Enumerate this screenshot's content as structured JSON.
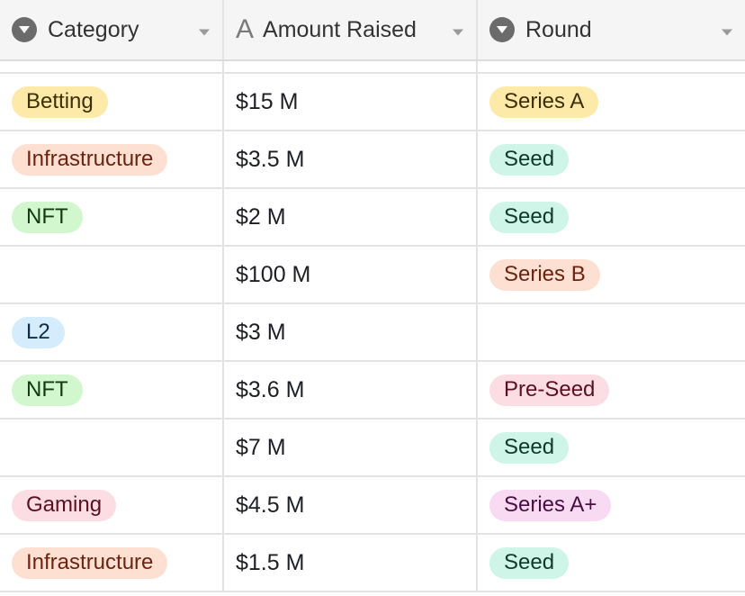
{
  "columns": [
    {
      "label": "Category",
      "icon": "single-select-icon"
    },
    {
      "label": "Amount Raised",
      "icon": "text-field-icon"
    },
    {
      "label": "Round",
      "icon": "single-select-icon"
    }
  ],
  "colors": {
    "yellow": {
      "bg": "#fde9a8",
      "fg": "#3d2f05"
    },
    "peach": {
      "bg": "#fde0d2",
      "fg": "#6a2410"
    },
    "green": {
      "bg": "#d2f7cf",
      "fg": "#123a10"
    },
    "blue": {
      "bg": "#d4ecfb",
      "fg": "#0f2c44"
    },
    "pink": {
      "bg": "#fcdde4",
      "fg": "#5a1022"
    },
    "teal": {
      "bg": "#cff4e8",
      "fg": "#0d3a2b"
    },
    "magenta": {
      "bg": "#f8daf3",
      "fg": "#4a0f42"
    }
  },
  "rows": [
    {
      "category": "Betting",
      "category_color": "yellow",
      "amount": "$15 M",
      "round": "Series A",
      "round_color": "yellow"
    },
    {
      "category": "Infrastructure",
      "category_color": "peach",
      "amount": "$3.5 M",
      "round": "Seed",
      "round_color": "teal"
    },
    {
      "category": "NFT",
      "category_color": "green",
      "amount": "$2 M",
      "round": "Seed",
      "round_color": "teal"
    },
    {
      "category": "",
      "category_color": "",
      "amount": "$100 M",
      "round": "Series B",
      "round_color": "peach"
    },
    {
      "category": "L2",
      "category_color": "blue",
      "amount": "$3 M",
      "round": "",
      "round_color": ""
    },
    {
      "category": "NFT",
      "category_color": "green",
      "amount": "$3.6 M",
      "round": "Pre-Seed",
      "round_color": "pink"
    },
    {
      "category": "",
      "category_color": "",
      "amount": "$7 M",
      "round": "Seed",
      "round_color": "teal"
    },
    {
      "category": "Gaming",
      "category_color": "pink",
      "amount": "$4.5 M",
      "round": "Series A+",
      "round_color": "magenta"
    },
    {
      "category": "Infrastructure",
      "category_color": "peach",
      "amount": "$1.5 M",
      "round": "Seed",
      "round_color": "teal"
    }
  ]
}
